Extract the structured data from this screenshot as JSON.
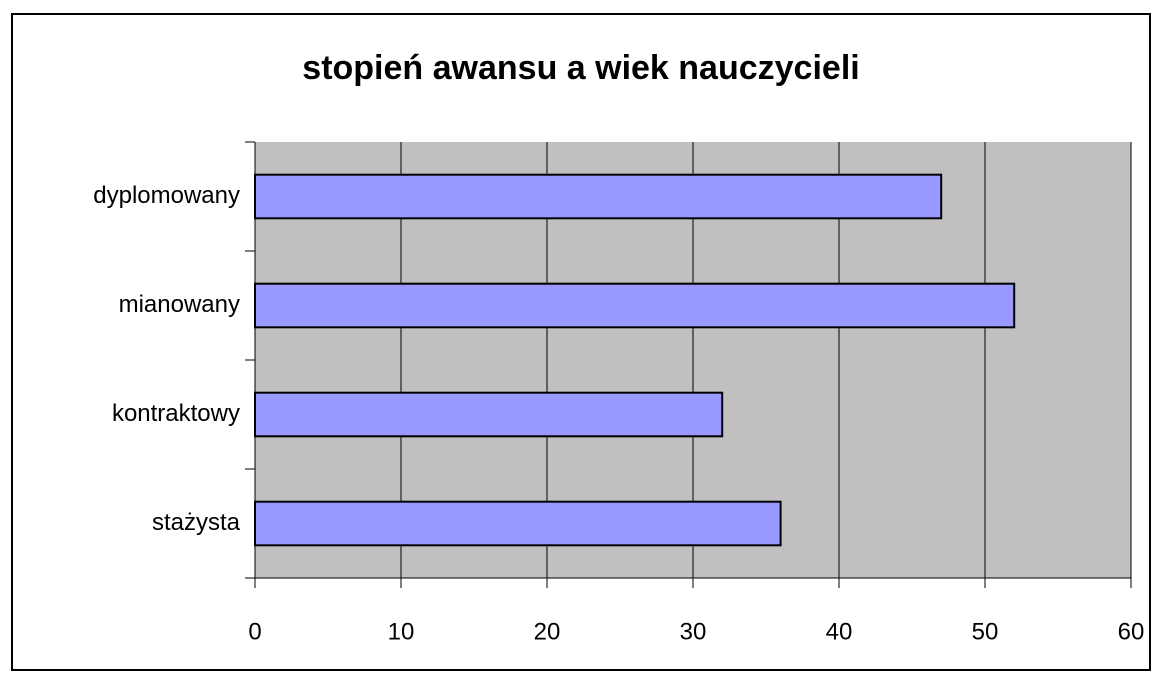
{
  "chart_data": {
    "type": "bar",
    "orientation": "horizontal",
    "title": "stopień awansu a wiek nauczycieli",
    "categories": [
      "dyplomowany",
      "mianowany",
      "kontraktowy",
      "stażysta"
    ],
    "values": [
      47,
      52,
      32,
      36
    ],
    "color": "#9999ff",
    "xlim": [
      0,
      60
    ],
    "xticks": [
      0,
      10,
      20,
      30,
      40,
      50,
      60
    ],
    "grid": true
  }
}
